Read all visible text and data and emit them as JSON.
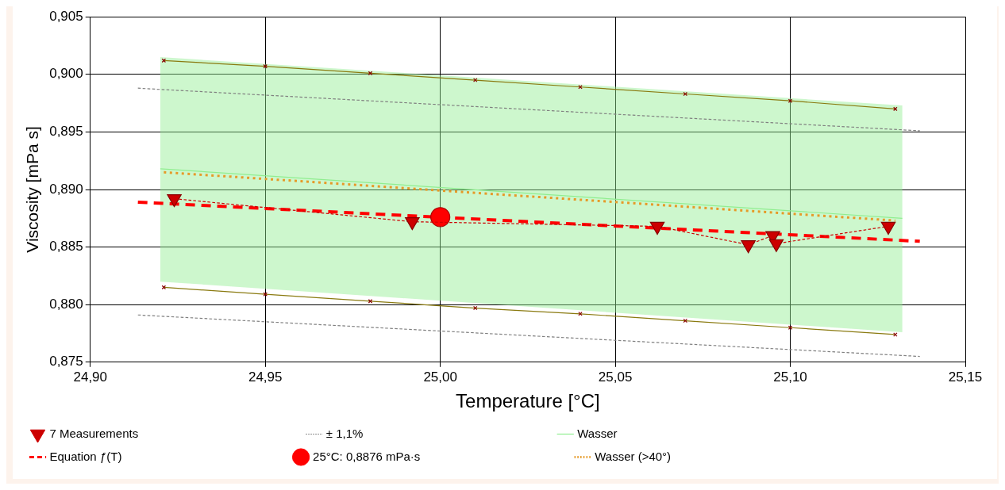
{
  "chart_data": {
    "type": "scatter",
    "xlabel": "Temperature [°C]",
    "ylabel": "Viscosity [mPa s]",
    "xlim": [
      24.9,
      25.15
    ],
    "ylim": [
      0.875,
      0.905
    ],
    "xticks": [
      {
        "value": 24.9,
        "label": "24,90"
      },
      {
        "value": 24.95,
        "label": "24,95"
      },
      {
        "value": 25.0,
        "label": "25,00"
      },
      {
        "value": 25.05,
        "label": "25,05"
      },
      {
        "value": 25.1,
        "label": "25,10"
      },
      {
        "value": 25.15,
        "label": "25,15"
      }
    ],
    "yticks": [
      {
        "value": 0.875,
        "label": "0,875"
      },
      {
        "value": 0.88,
        "label": "0,880"
      },
      {
        "value": 0.885,
        "label": "0,885"
      },
      {
        "value": 0.89,
        "label": "0,890"
      },
      {
        "value": 0.895,
        "label": "0,895"
      },
      {
        "value": 0.9,
        "label": "0,900"
      },
      {
        "value": 0.905,
        "label": "0,905"
      }
    ],
    "grid": true,
    "legend": "bottom",
    "series": [
      {
        "name": "7 Measurements",
        "type": "line",
        "color": "#cc0000",
        "marker": "triangle",
        "line_style": "dashed",
        "x": [
          24.924,
          24.992,
          25.062,
          25.088,
          25.095,
          25.096,
          25.128
        ],
        "values": [
          0.8892,
          0.8872,
          0.8868,
          0.8852,
          0.886,
          0.8853,
          0.8868
        ]
      },
      {
        "name": "± 1,1%",
        "type": "line",
        "color": "#808080",
        "marker": "none",
        "line_style": "dashed",
        "x": [
          24.9136,
          25.137
        ],
        "values": [
          0.8988,
          0.8951
        ]
      },
      {
        "name": "Wasser",
        "type": "line",
        "color": "#90ee90",
        "marker": "none",
        "line_style": "solid",
        "x": [
          24.92,
          25.132
        ],
        "values": [
          0.8918,
          0.8875
        ],
        "lower": [
          0.882,
          0.8776
        ],
        "upper": [
          0.9015,
          0.8973
        ]
      },
      {
        "name": "Equation ƒ(T)",
        "type": "line",
        "color": "#ff0000",
        "marker": "none",
        "line_style": "dashed",
        "x": [
          24.9136,
          25.137
        ],
        "values": [
          0.8889,
          0.8855
        ]
      },
      {
        "name": "25°C: 0,8876 mPa·s",
        "type": "scatter",
        "color": "#ff0000",
        "marker": "circle",
        "x": [
          25.0
        ],
        "values": [
          0.8876
        ]
      },
      {
        "name": "Wasser (>40°)",
        "type": "line",
        "color": "#e69a28",
        "marker": "none",
        "line_style": "dotted",
        "x": [
          24.921,
          25.13
        ],
        "values": [
          0.8915,
          0.8873
        ]
      },
      {
        "type": "line",
        "color": "#8a7a10",
        "marker": "cross",
        "line_style": "solid",
        "x": [
          24.921,
          24.95,
          24.98,
          25.01,
          25.04,
          25.07,
          25.1,
          25.13
        ],
        "values": [
          0.9012,
          0.9007,
          0.9001,
          0.8995,
          0.8989,
          0.8983,
          0.8977,
          0.897
        ]
      },
      {
        "type": "line",
        "color": "#8a7a10",
        "marker": "cross",
        "line_style": "solid",
        "x": [
          24.921,
          24.95,
          24.98,
          25.01,
          25.04,
          25.07,
          25.1,
          25.13
        ],
        "values": [
          0.8815,
          0.8809,
          0.8803,
          0.8797,
          0.8792,
          0.8786,
          0.878,
          0.8774
        ]
      },
      {
        "type": "line",
        "color": "#808080",
        "marker": "none",
        "line_style": "dashed",
        "x": [
          24.9136,
          25.137
        ],
        "values": [
          0.8791,
          0.8755
        ]
      }
    ]
  }
}
